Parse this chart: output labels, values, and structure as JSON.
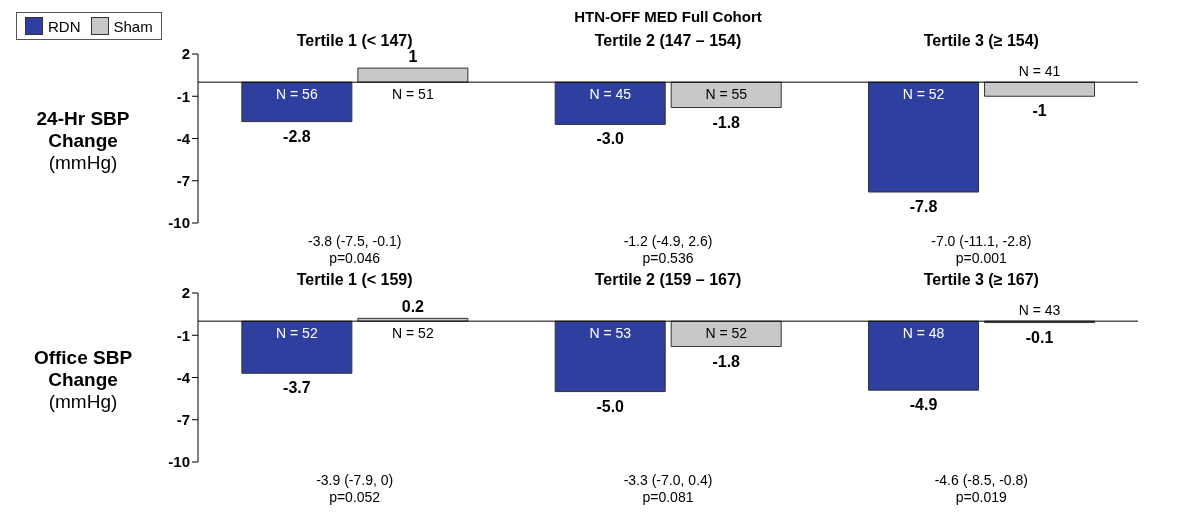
{
  "chart_data": [
    {
      "type": "bar",
      "title": "HTN-OFF MED Full Cohort",
      "ylabel": "24-Hr SBP\nChange\n(mmHg)",
      "categories": [
        "Tertile 1 (< 147)",
        "Tertile 2 (147 – 154)",
        "Tertile 3 (≥ 154)"
      ],
      "series": [
        {
          "name": "RDN",
          "color": "#2e3f9f",
          "values": [
            -2.8,
            -3.0,
            -7.8
          ],
          "value_labels": [
            "-2.8",
            "-3.0",
            "-7.8"
          ]
        },
        {
          "name": "Sham",
          "color": "#c8c8c8",
          "values": [
            1,
            -1.8,
            -1
          ],
          "value_labels": [
            "1",
            "-1.8",
            "-1"
          ]
        }
      ],
      "ylim": [
        -10,
        2
      ],
      "yticks": [
        2,
        -1,
        -4,
        -7,
        -10
      ],
      "legend": "top left",
      "annotations": [
        {
          "text": "N = 56",
          "x": "Tertile 1 (< 147)",
          "y": 0
        },
        {
          "text": "N = 51",
          "x": "Tertile 1 (< 147)",
          "y": 0
        },
        {
          "text": "N = 45",
          "x": "Tertile 2 (147 – 154)",
          "y": 0
        },
        {
          "text": "N = 55",
          "x": "Tertile 2 (147 – 154)",
          "y": 0
        },
        {
          "text": "N = 52",
          "x": "Tertile 3 (≥ 154)",
          "y": 0
        },
        {
          "text": "N = 41",
          "x": "Tertile 3 (≥ 154)",
          "y": 0
        },
        "-3.8 (-7.5, -0.1)\np=0.046",
        "-1.2 (-4.9, 2.6)\np=0.536",
        "-7.0 (-11.1, -2.8)\np=0.001"
      ]
    },
    {
      "type": "bar",
      "ylabel": "Office SBP\nChange\n(mmHg)",
      "categories": [
        "Tertile 1 (< 159)",
        "Tertile 2 (159 – 167)",
        "Tertile 3 (≥ 167)"
      ],
      "series": [
        {
          "color": "#2e3f9f",
          "values": [
            -3.7,
            -5.0,
            -4.9
          ],
          "value_labels": [
            "-3.7",
            "-5.0",
            "-4.9"
          ]
        },
        {
          "color": "#c8c8c8",
          "values": [
            0.2,
            -1.8,
            -0.1
          ],
          "value_labels": [
            "0.2",
            "-1.8",
            "-0.1"
          ]
        }
      ],
      "ylim": [
        -10,
        2
      ],
      "yticks": [
        2,
        -1,
        -4,
        -7,
        -10
      ],
      "annotations": [
        {
          "text": "N = 52",
          "x": "Tertile 1 (< 159)",
          "y": 0
        },
        {
          "text": "N = 52",
          "x": "Tertile 1 (< 159)",
          "y": 0
        },
        {
          "text": "N = 53",
          "x": "Tertile 2 (159 – 167)",
          "y": 0
        },
        {
          "text": "N = 52",
          "x": "Tertile 2 (159 – 167)",
          "y": 0
        },
        {
          "text": "N = 48",
          "x": "Tertile 3 (≥ 167)",
          "y": 0
        },
        {
          "text": "N = 43",
          "x": "Tertile 3 (≥ 167)",
          "y": 0
        },
        "-3.9 (-7.9, 0)\np=0.052",
        "-3.3 (-7.0, 0.4)\np=0.081",
        "-4.6 (-8.5, -0.8)\np=0.019"
      ]
    }
  ]
}
